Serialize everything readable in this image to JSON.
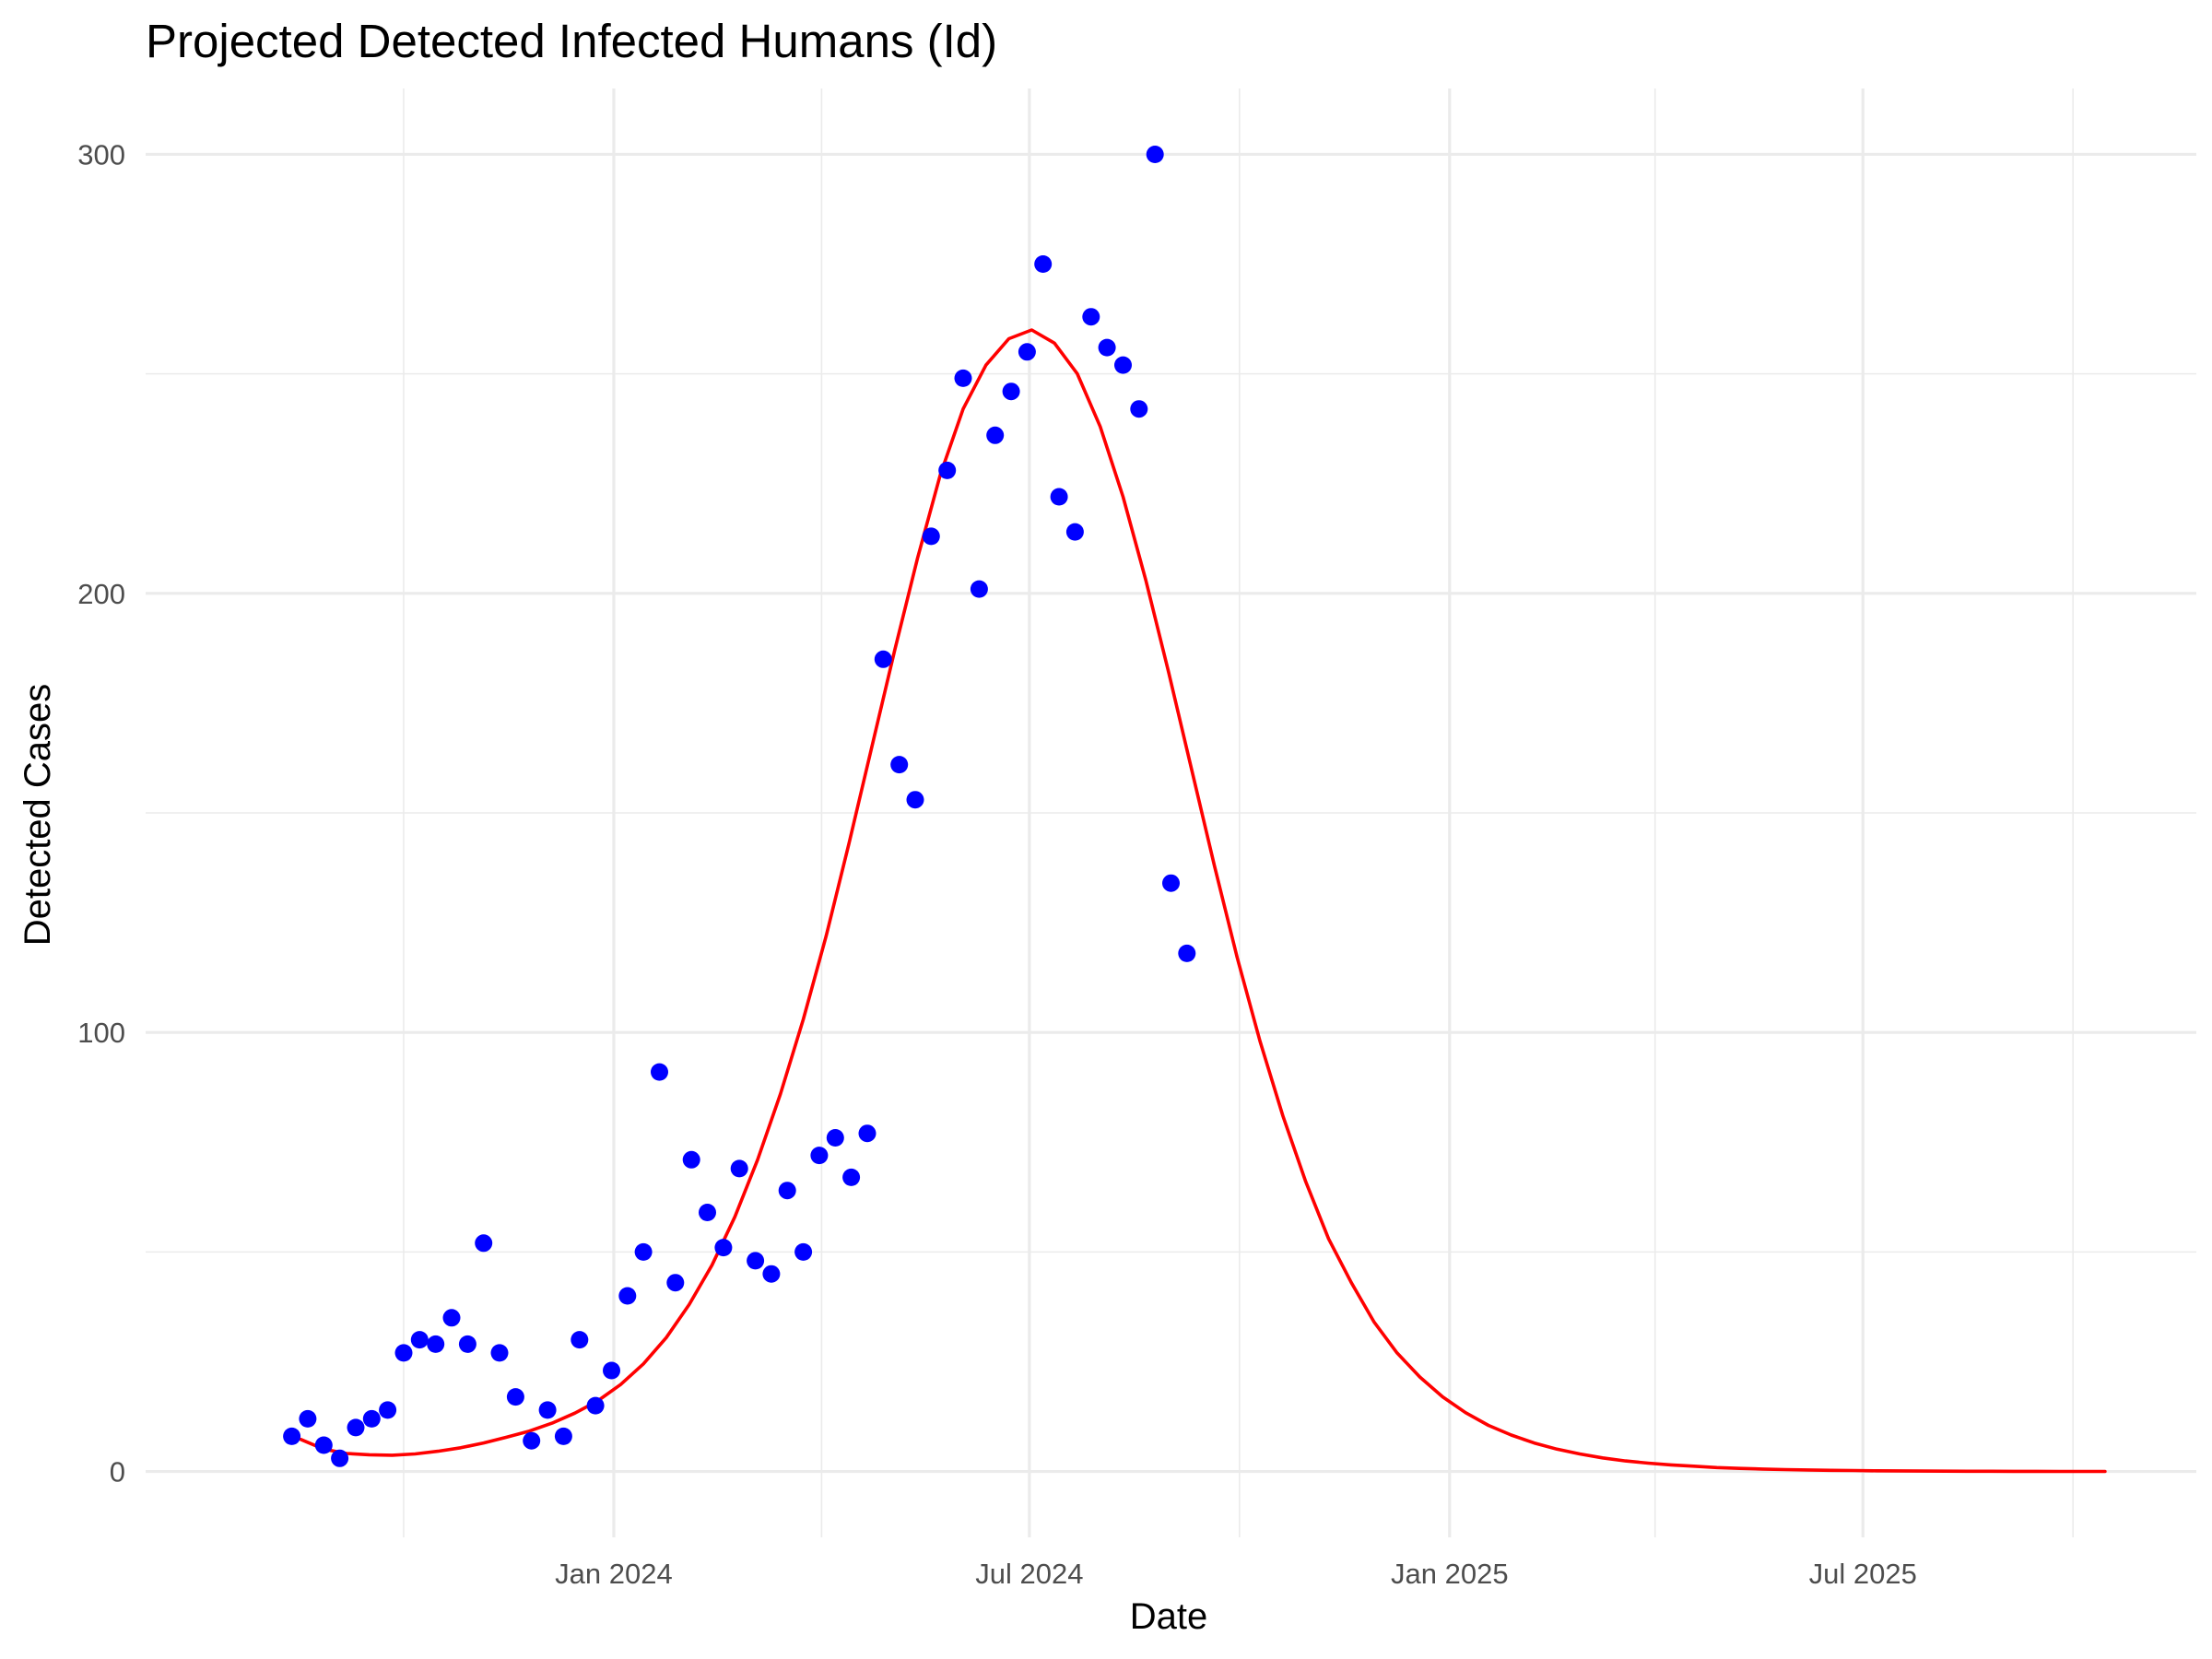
{
  "chart_data": {
    "type": "scatter",
    "title": "Projected Detected Infected Humans (Id)",
    "xlabel": "Date",
    "ylabel": "Detected Cases",
    "x_axis": {
      "type": "date",
      "range": [
        "2023-06-10",
        "2025-11-24"
      ],
      "ticks": [
        {
          "date": "2024-01-01",
          "label": "Jan 2024"
        },
        {
          "date": "2024-07-01",
          "label": "Jul 2024"
        },
        {
          "date": "2025-01-01",
          "label": "Jan 2025"
        },
        {
          "date": "2025-07-01",
          "label": "Jul 2025"
        }
      ],
      "minor_ticks": [
        "2023-10-01",
        "2024-04-01",
        "2024-10-01",
        "2025-04-01",
        "2025-10-01"
      ]
    },
    "y_axis": {
      "range": [
        -15,
        315
      ],
      "ticks": [
        0,
        100,
        200,
        300
      ],
      "minor_ticks": [
        50,
        150,
        250
      ]
    },
    "grid": true,
    "legend": "none",
    "colors": {
      "points": "#0000ff",
      "fit": "#ff0000"
    },
    "series": [
      {
        "type": "scatter",
        "points": [
          [
            "2023-08-13",
            8
          ],
          [
            "2023-08-20",
            12
          ],
          [
            "2023-08-27",
            6
          ],
          [
            "2023-09-03",
            3
          ],
          [
            "2023-09-10",
            10
          ],
          [
            "2023-09-17",
            12
          ],
          [
            "2023-09-24",
            14
          ],
          [
            "2023-10-01",
            27
          ],
          [
            "2023-10-08",
            30
          ],
          [
            "2023-10-15",
            29
          ],
          [
            "2023-10-22",
            35
          ],
          [
            "2023-10-29",
            29
          ],
          [
            "2023-11-05",
            52
          ],
          [
            "2023-11-12",
            27
          ],
          [
            "2023-11-19",
            17
          ],
          [
            "2023-11-26",
            7
          ],
          [
            "2023-12-03",
            14
          ],
          [
            "2023-12-10",
            8
          ],
          [
            "2023-12-17",
            30
          ],
          [
            "2023-12-24",
            15
          ],
          [
            "2023-12-31",
            23
          ],
          [
            "2024-01-07",
            40
          ],
          [
            "2024-01-14",
            50
          ],
          [
            "2024-01-21",
            91
          ],
          [
            "2024-01-28",
            43
          ],
          [
            "2024-02-04",
            71
          ],
          [
            "2024-02-11",
            59
          ],
          [
            "2024-02-18",
            51
          ],
          [
            "2024-02-25",
            69
          ],
          [
            "2024-03-03",
            48
          ],
          [
            "2024-03-10",
            45
          ],
          [
            "2024-03-17",
            64
          ],
          [
            "2024-03-24",
            50
          ],
          [
            "2024-03-31",
            72
          ],
          [
            "2024-04-07",
            76
          ],
          [
            "2024-04-14",
            67
          ],
          [
            "2024-04-21",
            77
          ],
          [
            "2024-04-28",
            185
          ],
          [
            "2024-05-05",
            161
          ],
          [
            "2024-05-12",
            153
          ],
          [
            "2024-05-19",
            213
          ],
          [
            "2024-05-26",
            228
          ],
          [
            "2024-06-02",
            249
          ],
          [
            "2024-06-09",
            201
          ],
          [
            "2024-06-16",
            236
          ],
          [
            "2024-06-23",
            246
          ],
          [
            "2024-06-30",
            255
          ],
          [
            "2024-07-07",
            275
          ],
          [
            "2024-07-14",
            222
          ],
          [
            "2024-07-21",
            214
          ],
          [
            "2024-07-28",
            263
          ],
          [
            "2024-08-04",
            256
          ],
          [
            "2024-08-11",
            252
          ],
          [
            "2024-08-18",
            242
          ],
          [
            "2024-08-25",
            300
          ],
          [
            "2024-09-01",
            134
          ],
          [
            "2024-09-08",
            118
          ]
        ]
      },
      {
        "type": "line",
        "points": [
          [
            "2023-08-17",
            7.3
          ],
          [
            "2023-08-27",
            5.1
          ],
          [
            "2023-09-06",
            4.1
          ],
          [
            "2023-09-16",
            3.8
          ],
          [
            "2023-09-26",
            3.7
          ],
          [
            "2023-10-06",
            4.0
          ],
          [
            "2023-10-16",
            4.6
          ],
          [
            "2023-10-26",
            5.4
          ],
          [
            "2023-11-05",
            6.5
          ],
          [
            "2023-11-15",
            7.8
          ],
          [
            "2023-11-25",
            9.2
          ],
          [
            "2023-12-05",
            11.0
          ],
          [
            "2023-12-15",
            13.3
          ],
          [
            "2023-12-25",
            16.1
          ],
          [
            "2024-01-04",
            19.8
          ],
          [
            "2024-01-14",
            24.5
          ],
          [
            "2024-01-24",
            30.5
          ],
          [
            "2024-02-03",
            38.0
          ],
          [
            "2024-02-13",
            47.0
          ],
          [
            "2024-02-23",
            58.0
          ],
          [
            "2024-03-04",
            71.0
          ],
          [
            "2024-03-14",
            86.0
          ],
          [
            "2024-03-24",
            103.0
          ],
          [
            "2024-04-03",
            122.0
          ],
          [
            "2024-04-13",
            143.0
          ],
          [
            "2024-04-23",
            165.0
          ],
          [
            "2024-05-03",
            187.0
          ],
          [
            "2024-05-13",
            208.0
          ],
          [
            "2024-05-23",
            227.0
          ],
          [
            "2024-06-02",
            242.0
          ],
          [
            "2024-06-12",
            252.0
          ],
          [
            "2024-06-22",
            258.0
          ],
          [
            "2024-07-02",
            260.0
          ],
          [
            "2024-07-12",
            257.0
          ],
          [
            "2024-07-22",
            250.0
          ],
          [
            "2024-08-01",
            238.0
          ],
          [
            "2024-08-11",
            222.0
          ],
          [
            "2024-08-21",
            203.0
          ],
          [
            "2024-08-31",
            182.0
          ],
          [
            "2024-09-10",
            160.0
          ],
          [
            "2024-09-20",
            138.0
          ],
          [
            "2024-09-30",
            117.0
          ],
          [
            "2024-10-10",
            98.0
          ],
          [
            "2024-10-20",
            81.0
          ],
          [
            "2024-10-30",
            66.0
          ],
          [
            "2024-11-09",
            53.0
          ],
          [
            "2024-11-19",
            43.0
          ],
          [
            "2024-11-29",
            34.0
          ],
          [
            "2024-12-09",
            27.0
          ],
          [
            "2024-12-19",
            21.5
          ],
          [
            "2024-12-29",
            17.0
          ],
          [
            "2025-01-08",
            13.4
          ],
          [
            "2025-01-18",
            10.5
          ],
          [
            "2025-01-28",
            8.3
          ],
          [
            "2025-02-07",
            6.5
          ],
          [
            "2025-02-17",
            5.1
          ],
          [
            "2025-02-27",
            4.0
          ],
          [
            "2025-03-09",
            3.1
          ],
          [
            "2025-03-19",
            2.4
          ],
          [
            "2025-03-29",
            1.9
          ],
          [
            "2025-04-08",
            1.5
          ],
          [
            "2025-04-18",
            1.2
          ],
          [
            "2025-04-28",
            0.9
          ],
          [
            "2025-05-08",
            0.7
          ],
          [
            "2025-05-18",
            0.55
          ],
          [
            "2025-05-28",
            0.43
          ],
          [
            "2025-06-07",
            0.34
          ],
          [
            "2025-06-17",
            0.27
          ],
          [
            "2025-06-27",
            0.21
          ],
          [
            "2025-07-07",
            0.16
          ],
          [
            "2025-07-17",
            0.13
          ],
          [
            "2025-07-27",
            0.1
          ],
          [
            "2025-08-06",
            0.08
          ],
          [
            "2025-08-16",
            0.06
          ],
          [
            "2025-08-26",
            0.05
          ],
          [
            "2025-09-05",
            0.04
          ],
          [
            "2025-09-15",
            0.03
          ],
          [
            "2025-09-25",
            0.02
          ],
          [
            "2025-10-05",
            0.02
          ],
          [
            "2025-10-15",
            0.01
          ]
        ]
      }
    ]
  }
}
